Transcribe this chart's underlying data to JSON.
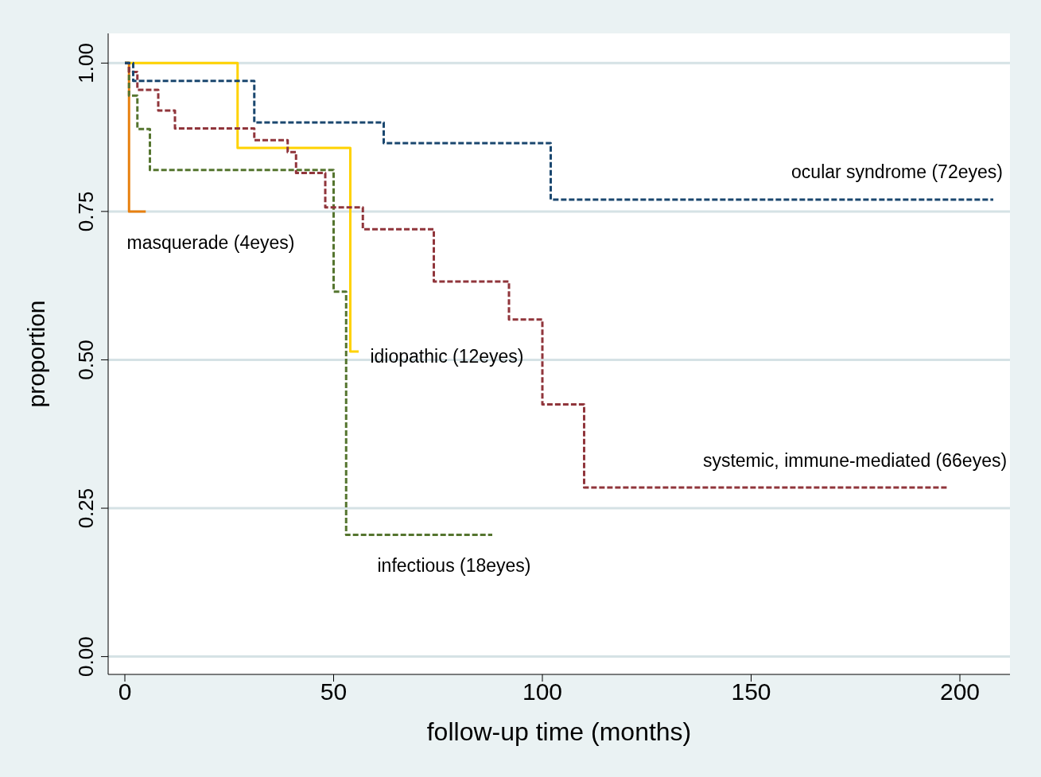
{
  "chart_data": {
    "type": "step",
    "xlabel": "follow-up time (months)",
    "ylabel": "proportion",
    "xlim": [
      -4,
      212
    ],
    "ylim": [
      -0.03,
      1.05
    ],
    "xticks": [
      0,
      50,
      100,
      150,
      200
    ],
    "yticks": [
      {
        "value": 0,
        "label": "0.00"
      },
      {
        "value": 0.25,
        "label": "0.25"
      },
      {
        "value": 0.5,
        "label": "0.50"
      },
      {
        "value": 0.75,
        "label": "0.75"
      },
      {
        "value": 1,
        "label": "1.00"
      }
    ],
    "grid": "y",
    "legend": false,
    "series": [
      {
        "name": "ocular syndrome (72eyes)",
        "color": "#1a476f",
        "line_style": "dashed",
        "x": [
          0,
          2,
          31,
          62,
          102,
          208
        ],
        "values": [
          1,
          0.97,
          0.9,
          0.865,
          0.77,
          0.77
        ]
      },
      {
        "name": "systemic, immune-mediated (66eyes)",
        "color": "#90353b",
        "line_style": "dashed",
        "x": [
          0,
          1,
          3,
          8,
          12,
          31,
          39,
          41,
          48,
          57,
          74,
          92,
          100,
          110,
          197
        ],
        "values": [
          1,
          0.985,
          0.955,
          0.92,
          0.89,
          0.87,
          0.85,
          0.815,
          0.757,
          0.72,
          0.632,
          0.568,
          0.425,
          0.285,
          0.285
        ]
      },
      {
        "name": "idiopathic (12eyes)",
        "color": "#ffd200",
        "line_style": "solid",
        "x": [
          0,
          27,
          54,
          56
        ],
        "values": [
          1,
          0.857,
          0.514,
          0.514
        ]
      },
      {
        "name": "infectious (18eyes)",
        "color": "#55752f",
        "line_style": "dashed",
        "x": [
          0,
          1,
          3,
          6,
          50,
          53,
          88
        ],
        "values": [
          1,
          0.945,
          0.889,
          0.82,
          0.615,
          0.205,
          0.205
        ]
      },
      {
        "name": "masquerade (4eyes)",
        "color": "#e8800f",
        "line_style": "solid",
        "x": [
          0,
          1,
          5
        ],
        "values": [
          1,
          0.75,
          0.75
        ]
      }
    ]
  }
}
